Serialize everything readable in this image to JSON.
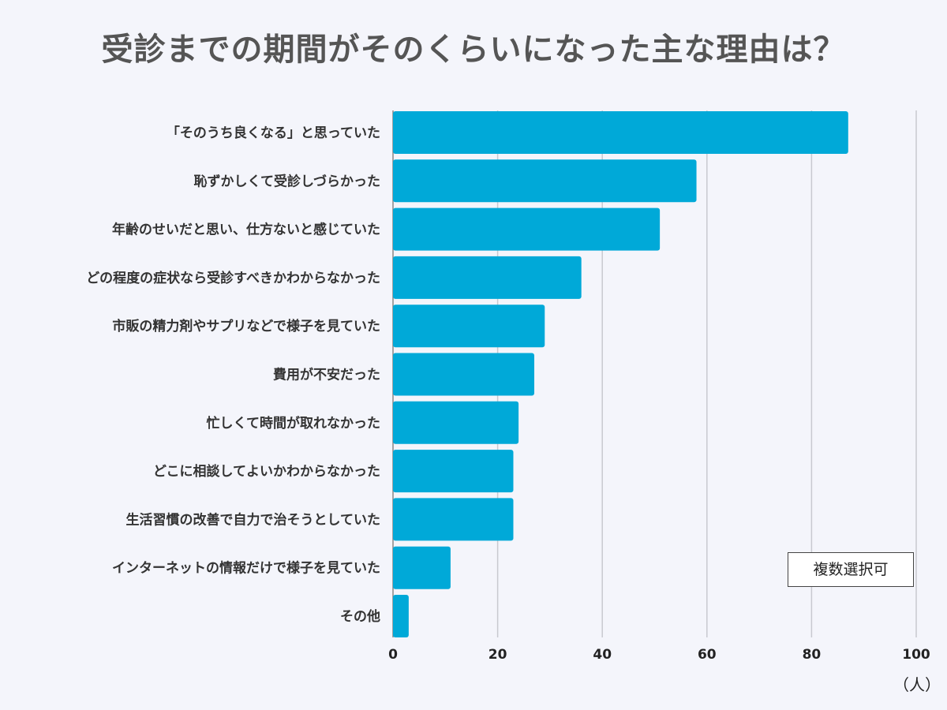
{
  "chart_data": {
    "type": "bar",
    "orientation": "horizontal",
    "title": "受診までの期間がそのくらいになった主な理由は？",
    "categories": [
      "「そのうち良くなる」と思っていた",
      "恥ずかしくて受診しづらかった",
      "年齢のせいだと思い、仕方ないと感じていた",
      "どの程度の症状なら受診すべきかわからなかった",
      "市販の精力剤やサプリなどで様子を見ていた",
      "費用が不安だった",
      "忙しくて時間が取れなかった",
      "どこに相談してよいかわからなかった",
      "生活習慣の改善で自力で治そうとしていた",
      "インターネットの情報だけで様子を見ていた",
      "その他"
    ],
    "values": [
      87,
      58,
      51,
      36,
      29,
      27,
      24,
      23,
      23,
      11,
      3
    ],
    "xlim": [
      0,
      100
    ],
    "xticks": [
      "0",
      "20",
      "40",
      "60",
      "80",
      "100"
    ],
    "xlabel": "（人）",
    "annotation": "複数選択可",
    "grid": "vertical",
    "bar_color": "#00a9d8"
  }
}
